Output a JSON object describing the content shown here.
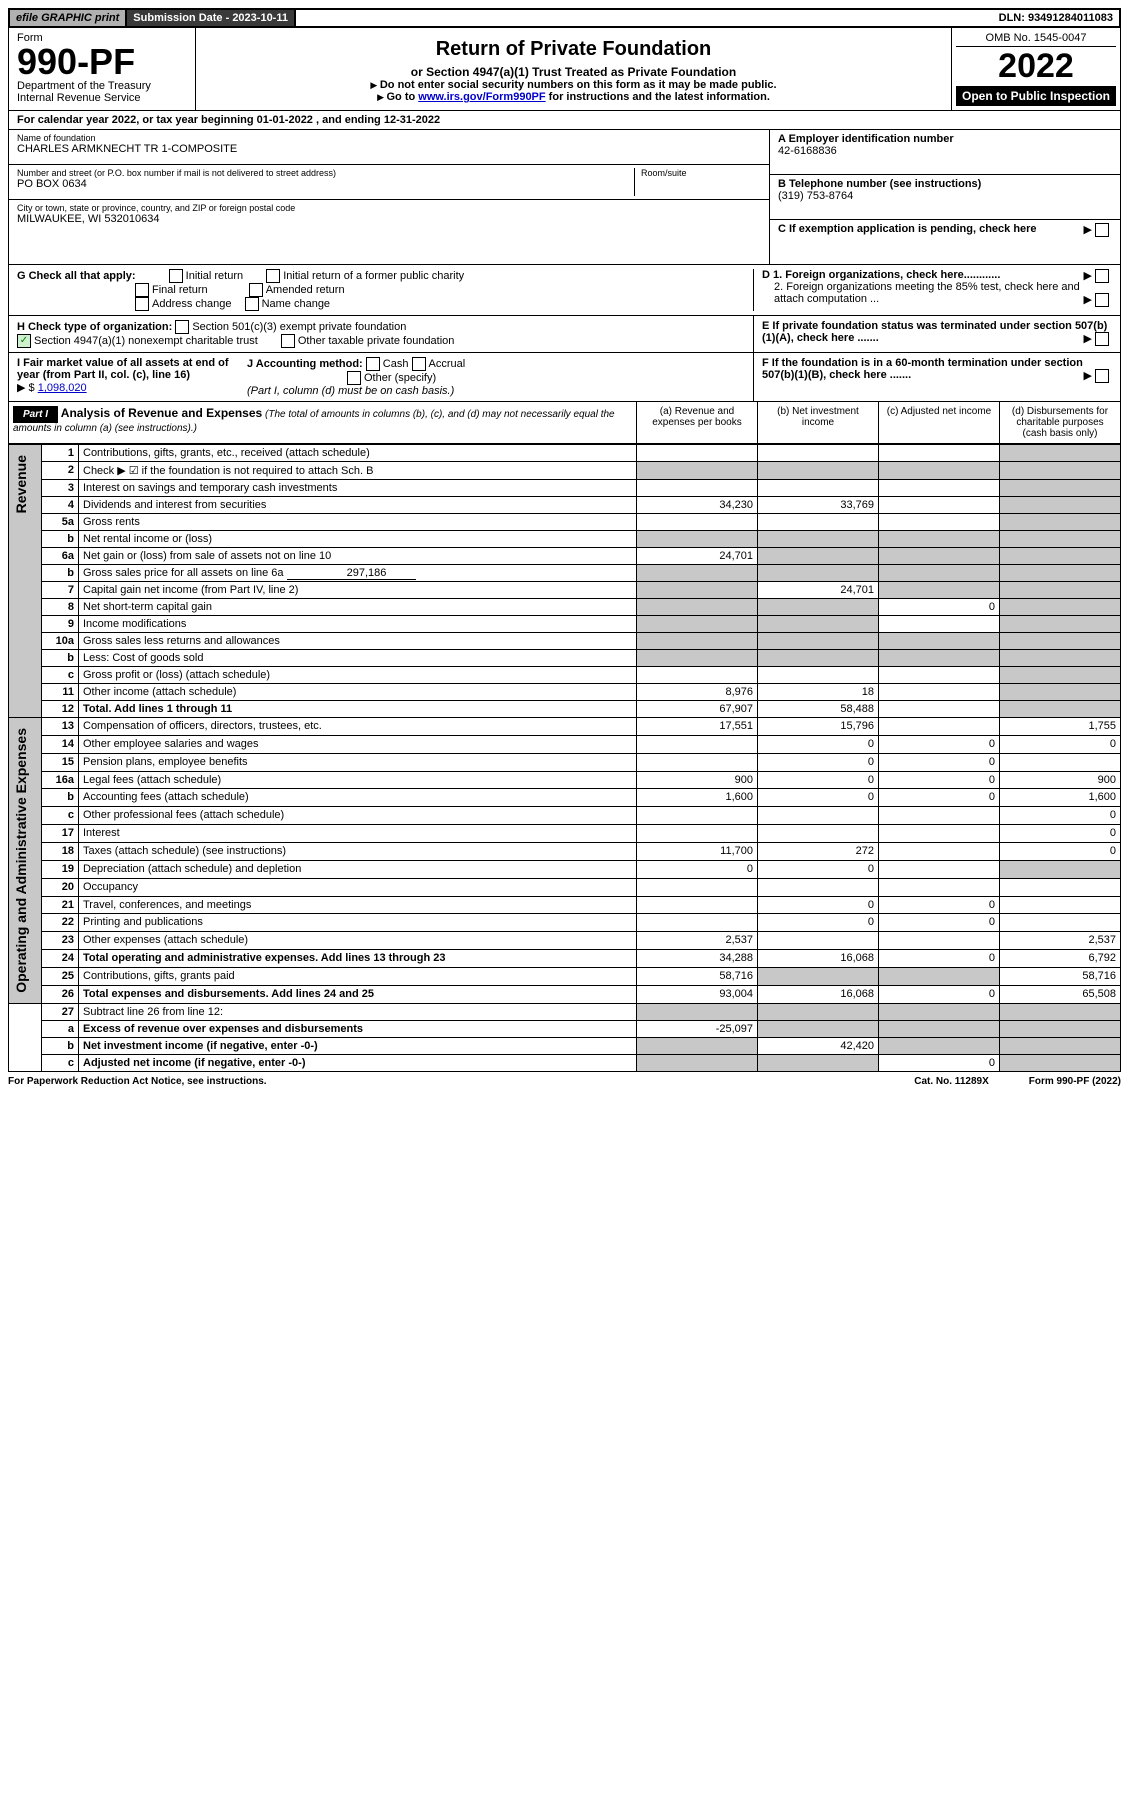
{
  "topbar": {
    "efile": "efile GRAPHIC print",
    "submission": "Submission Date - 2023-10-11",
    "dln": "DLN: 93491284011083"
  },
  "header": {
    "form_label": "Form",
    "form_no": "990-PF",
    "dept": "Department of the Treasury",
    "irs": "Internal Revenue Service",
    "title": "Return of Private Foundation",
    "subtitle": "or Section 4947(a)(1) Trust Treated as Private Foundation",
    "note1": "Do not enter social security numbers on this form as it may be made public.",
    "note2_pre": "Go to ",
    "note2_link": "www.irs.gov/Form990PF",
    "note2_post": " for instructions and the latest information.",
    "omb": "OMB No. 1545-0047",
    "year": "2022",
    "inspection": "Open to Public Inspection"
  },
  "calyear": {
    "text_pre": "For calendar year 2022, or tax year beginning ",
    "begin": "01-01-2022",
    "text_mid": " , and ending ",
    "end": "12-31-2022"
  },
  "info": {
    "name_label": "Name of foundation",
    "name": "CHARLES ARMKNECHT TR 1-COMPOSITE",
    "addr_label": "Number and street (or P.O. box number if mail is not delivered to street address)",
    "addr": "PO BOX 0634",
    "room_label": "Room/suite",
    "city_label": "City or town, state or province, country, and ZIP or foreign postal code",
    "city": "MILWAUKEE, WI  532010634",
    "a_label": "A Employer identification number",
    "a_val": "42-6168836",
    "b_label": "B Telephone number (see instructions)",
    "b_val": "(319) 753-8764",
    "c_label": "C If exemption application is pending, check here"
  },
  "checks": {
    "g_label": "G Check all that apply:",
    "g_opts": [
      "Initial return",
      "Initial return of a former public charity",
      "Final return",
      "Amended return",
      "Address change",
      "Name change"
    ],
    "d1": "D 1. Foreign organizations, check here............",
    "d2": "2. Foreign organizations meeting the 85% test, check here and attach computation ...",
    "e": "E  If private foundation status was terminated under section 507(b)(1)(A), check here .......",
    "h_label": "H Check type of organization:",
    "h1": "Section 501(c)(3) exempt private foundation",
    "h2": "Section 4947(a)(1) nonexempt charitable trust",
    "h3": "Other taxable private foundation",
    "i_label": "I Fair market value of all assets at end of year (from Part II, col. (c), line 16)",
    "i_val": "1,098,020",
    "j_label": "J Accounting method:",
    "j_opts": [
      "Cash",
      "Accrual",
      "Other (specify)"
    ],
    "j_note": "(Part I, column (d) must be on cash basis.)",
    "f": "F  If the foundation is in a 60-month termination under section 507(b)(1)(B), check here ......."
  },
  "part1": {
    "label": "Part I",
    "title": "Analysis of Revenue and Expenses",
    "title_note": "(The total of amounts in columns (b), (c), and (d) may not necessarily equal the amounts in column (a) (see instructions).)",
    "cols": {
      "a": "(a) Revenue and expenses per books",
      "b": "(b) Net investment income",
      "c": "(c) Adjusted net income",
      "d": "(d) Disbursements for charitable purposes (cash basis only)"
    },
    "sections": {
      "revenue": "Revenue",
      "expenses": "Operating and Administrative Expenses"
    },
    "rows": [
      {
        "n": "1",
        "d": "Contributions, gifts, grants, etc., received (attach schedule)",
        "a": "",
        "b": "",
        "c": "",
        "dshade": true
      },
      {
        "n": "2",
        "d": "Check ▶ ☑ if the foundation is not required to attach Sch. B",
        "raw": true,
        "a": "",
        "ashade": true,
        "bshade": true,
        "cshade": true,
        "dshade": true
      },
      {
        "n": "3",
        "d": "Interest on savings and temporary cash investments",
        "a": "",
        "b": "",
        "c": "",
        "dshade": true
      },
      {
        "n": "4",
        "d": "Dividends and interest from securities",
        "a": "34,230",
        "b": "33,769",
        "c": "",
        "dshade": true
      },
      {
        "n": "5a",
        "d": "Gross rents",
        "a": "",
        "b": "",
        "c": "",
        "dshade": true
      },
      {
        "n": "b",
        "d": "Net rental income or (loss)",
        "a": "",
        "ashade": true,
        "bshade": true,
        "cshade": true,
        "dshade": true,
        "inline": true
      },
      {
        "n": "6a",
        "d": "Net gain or (loss) from sale of assets not on line 10",
        "a": "24,701",
        "bshade": true,
        "cshade": true,
        "dshade": true
      },
      {
        "n": "b",
        "d": "Gross sales price for all assets on line 6a",
        "inline_val": "297,186",
        "ashade": true,
        "bshade": true,
        "cshade": true,
        "dshade": true
      },
      {
        "n": "7",
        "d": "Capital gain net income (from Part IV, line 2)",
        "ashade": true,
        "b": "24,701",
        "cshade": true,
        "dshade": true
      },
      {
        "n": "8",
        "d": "Net short-term capital gain",
        "ashade": true,
        "bshade": true,
        "c": "0",
        "dshade": true
      },
      {
        "n": "9",
        "d": "Income modifications",
        "ashade": true,
        "bshade": true,
        "c": "",
        "dshade": true
      },
      {
        "n": "10a",
        "d": "Gross sales less returns and allowances",
        "inline": true,
        "ashade": true,
        "bshade": true,
        "cshade": true,
        "dshade": true
      },
      {
        "n": "b",
        "d": "Less: Cost of goods sold",
        "inline": true,
        "ashade": true,
        "bshade": true,
        "cshade": true,
        "dshade": true
      },
      {
        "n": "c",
        "d": "Gross profit or (loss) (attach schedule)",
        "a": "",
        "b": "",
        "c": "",
        "dshade": true
      },
      {
        "n": "11",
        "d": "Other income (attach schedule)",
        "a": "8,976",
        "b": "18",
        "c": "",
        "dshade": true
      },
      {
        "n": "12",
        "d": "Total. Add lines 1 through 11",
        "bold": true,
        "a": "67,907",
        "b": "58,488",
        "c": "",
        "dshade": true
      },
      {
        "n": "13",
        "d": "Compensation of officers, directors, trustees, etc.",
        "a": "17,551",
        "b": "15,796",
        "c": "",
        "dd": "1,755",
        "sec": "exp"
      },
      {
        "n": "14",
        "d": "Other employee salaries and wages",
        "a": "",
        "b": "0",
        "c": "0",
        "dd": "0",
        "sec": "exp"
      },
      {
        "n": "15",
        "d": "Pension plans, employee benefits",
        "a": "",
        "b": "0",
        "c": "0",
        "dd": "",
        "sec": "exp"
      },
      {
        "n": "16a",
        "d": "Legal fees (attach schedule)",
        "a": "900",
        "b": "0",
        "c": "0",
        "dd": "900",
        "sec": "exp"
      },
      {
        "n": "b",
        "d": "Accounting fees (attach schedule)",
        "a": "1,600",
        "b": "0",
        "c": "0",
        "dd": "1,600",
        "sec": "exp"
      },
      {
        "n": "c",
        "d": "Other professional fees (attach schedule)",
        "a": "",
        "b": "",
        "c": "",
        "dd": "0",
        "sec": "exp"
      },
      {
        "n": "17",
        "d": "Interest",
        "a": "",
        "b": "",
        "c": "",
        "dd": "0",
        "sec": "exp"
      },
      {
        "n": "18",
        "d": "Taxes (attach schedule) (see instructions)",
        "a": "11,700",
        "b": "272",
        "c": "",
        "dd": "0",
        "sec": "exp"
      },
      {
        "n": "19",
        "d": "Depreciation (attach schedule) and depletion",
        "a": "0",
        "b": "0",
        "c": "",
        "dshade": true,
        "sec": "exp"
      },
      {
        "n": "20",
        "d": "Occupancy",
        "a": "",
        "b": "",
        "c": "",
        "dd": "",
        "sec": "exp"
      },
      {
        "n": "21",
        "d": "Travel, conferences, and meetings",
        "a": "",
        "b": "0",
        "c": "0",
        "dd": "",
        "sec": "exp"
      },
      {
        "n": "22",
        "d": "Printing and publications",
        "a": "",
        "b": "0",
        "c": "0",
        "dd": "",
        "sec": "exp"
      },
      {
        "n": "23",
        "d": "Other expenses (attach schedule)",
        "a": "2,537",
        "b": "",
        "c": "",
        "dd": "2,537",
        "sec": "exp"
      },
      {
        "n": "24",
        "d": "Total operating and administrative expenses. Add lines 13 through 23",
        "bold": true,
        "a": "34,288",
        "b": "16,068",
        "c": "0",
        "dd": "6,792",
        "sec": "exp"
      },
      {
        "n": "25",
        "d": "Contributions, gifts, grants paid",
        "a": "58,716",
        "bshade": true,
        "cshade": true,
        "dd": "58,716",
        "sec": "exp"
      },
      {
        "n": "26",
        "d": "Total expenses and disbursements. Add lines 24 and 25",
        "bold": true,
        "a": "93,004",
        "b": "16,068",
        "c": "0",
        "dd": "65,508",
        "sec": "exp"
      },
      {
        "n": "27",
        "d": "Subtract line 26 from line 12:",
        "ashade": true,
        "bshade": true,
        "cshade": true,
        "dshade": true,
        "sec": "sum"
      },
      {
        "n": "a",
        "d": "Excess of revenue over expenses and disbursements",
        "bold": true,
        "a": "-25,097",
        "bshade": true,
        "cshade": true,
        "dshade": true,
        "sec": "sum"
      },
      {
        "n": "b",
        "d": "Net investment income (if negative, enter -0-)",
        "bold": true,
        "ashade": true,
        "b": "42,420",
        "cshade": true,
        "dshade": true,
        "sec": "sum"
      },
      {
        "n": "c",
        "d": "Adjusted net income (if negative, enter -0-)",
        "bold": true,
        "ashade": true,
        "bshade": true,
        "c": "0",
        "dshade": true,
        "sec": "sum"
      }
    ]
  },
  "footer": {
    "left": "For Paperwork Reduction Act Notice, see instructions.",
    "mid": "Cat. No. 11289X",
    "right": "Form 990-PF (2022)"
  }
}
